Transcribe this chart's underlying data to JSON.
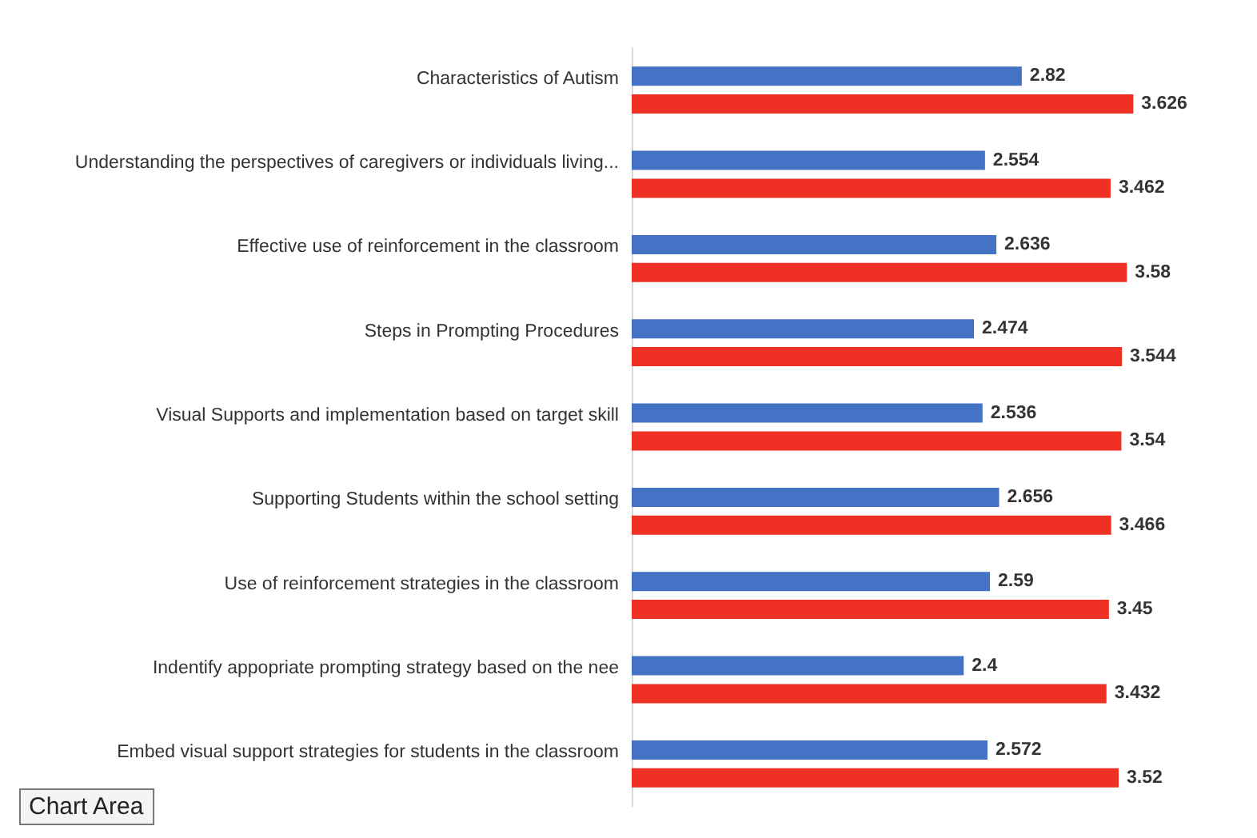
{
  "chart_data": {
    "type": "bar",
    "orientation": "horizontal",
    "categories": [
      "Characteristics of Autism",
      "Understanding the perspectives of caregivers or individuals living...",
      "Effective use of reinforcement in the classroom",
      "Steps in Prompting Procedures",
      "Visual Supports and implementation based on target skill",
      "Supporting Students within the school setting",
      "Use of reinforcement strategies in the classroom",
      "Indentify appopriate prompting strategy based on the nee",
      "Embed visual support strategies for students in the classroom"
    ],
    "series": [
      {
        "color": "#4472c4",
        "values": [
          2.82,
          2.554,
          2.636,
          2.474,
          2.536,
          2.656,
          2.59,
          2.4,
          2.572
        ]
      },
      {
        "color": "#ee3124",
        "values": [
          3.626,
          3.462,
          3.58,
          3.544,
          3.54,
          3.466,
          3.45,
          3.432,
          3.52
        ]
      }
    ],
    "data_labels": true,
    "grid": false,
    "tick_labels": "y",
    "annotations": [
      "Chart Area"
    ]
  }
}
